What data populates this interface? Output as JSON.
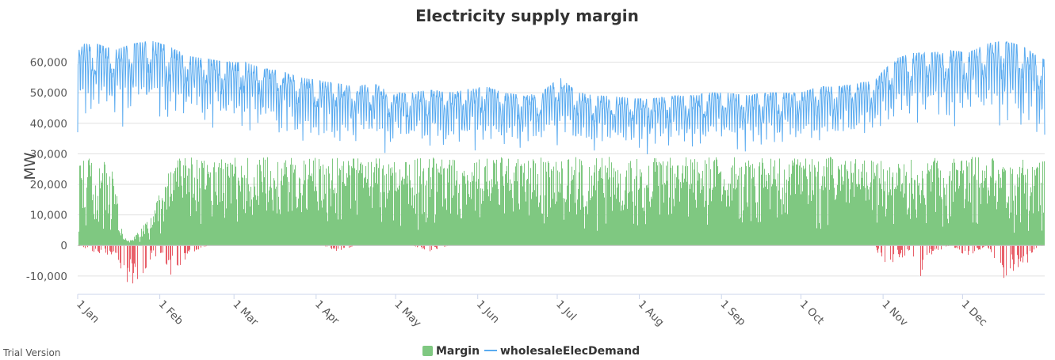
{
  "watermark": "Trial Version",
  "chart_data": {
    "type": "bar+line",
    "title": "Electricity supply margin",
    "xlabel": "",
    "ylabel": "MW",
    "ylim": [
      -16000,
      70000
    ],
    "yticks": [
      -10000,
      0,
      10000,
      20000,
      30000,
      40000,
      50000,
      60000
    ],
    "ytick_labels": [
      "-10,000",
      "0",
      "10,000",
      "20,000",
      "30,000",
      "40,000",
      "50,000",
      "60,000"
    ],
    "xlim": [
      "2021-01-01",
      "2021-12-31"
    ],
    "xticks": [
      "2021-01-01",
      "2021-02-01",
      "2021-03-01",
      "2021-04-01",
      "2021-05-01",
      "2021-06-01",
      "2021-07-01",
      "2021-08-01",
      "2021-09-01",
      "2021-10-01",
      "2021-11-01",
      "2021-12-01"
    ],
    "xtick_labels": [
      "1 Jan",
      "1 Feb",
      "1 Mar",
      "1 Apr",
      "1 May",
      "1 Jun",
      "1 Jul",
      "1 Aug",
      "1 Sep",
      "1 Oct",
      "1 Nov",
      "1 Dec"
    ],
    "grid": true,
    "legend": "bottom-center",
    "series": [
      {
        "name": "Margin",
        "type": "column",
        "color": "#7fc881",
        "negative_color": "#e8606a",
        "x": [
          "2021-01-01",
          "2021-01-08",
          "2021-01-15",
          "2021-01-18",
          "2021-01-21",
          "2021-01-24",
          "2021-01-29",
          "2021-02-05",
          "2021-02-12",
          "2021-02-19",
          "2021-02-26",
          "2021-03-05",
          "2021-03-12",
          "2021-03-19",
          "2021-03-26",
          "2021-04-02",
          "2021-04-09",
          "2021-04-16",
          "2021-04-23",
          "2021-04-30",
          "2021-05-07",
          "2021-05-14",
          "2021-05-21",
          "2021-05-28",
          "2021-06-04",
          "2021-06-11",
          "2021-06-18",
          "2021-06-25",
          "2021-07-02",
          "2021-07-09",
          "2021-07-16",
          "2021-07-23",
          "2021-07-30",
          "2021-08-06",
          "2021-08-13",
          "2021-08-20",
          "2021-08-27",
          "2021-09-03",
          "2021-09-10",
          "2021-09-17",
          "2021-09-24",
          "2021-10-01",
          "2021-10-08",
          "2021-10-15",
          "2021-10-22",
          "2021-10-29",
          "2021-11-01",
          "2021-11-05",
          "2021-11-12",
          "2021-11-15",
          "2021-11-19",
          "2021-11-26",
          "2021-12-03",
          "2021-12-10",
          "2021-12-17",
          "2021-12-20",
          "2021-12-24",
          "2021-12-31"
        ],
        "max": [
          29000,
          29000,
          25000,
          3000,
          2000,
          5000,
          10000,
          28000,
          29000,
          29000,
          29000,
          29000,
          29000,
          29000,
          29000,
          29000,
          29000,
          29000,
          29000,
          29000,
          29000,
          29000,
          29000,
          29000,
          29000,
          29000,
          29000,
          29000,
          29000,
          29000,
          29000,
          29000,
          29000,
          29000,
          29000,
          29000,
          29000,
          29000,
          29000,
          29000,
          29000,
          29000,
          29000,
          29000,
          29000,
          29000,
          28000,
          26000,
          29000,
          25000,
          29000,
          29000,
          29000,
          29000,
          28000,
          25000,
          29000,
          29000
        ],
        "min": [
          0,
          -3000,
          -3000,
          -14000,
          -12000,
          -15000,
          -3000,
          -10000,
          -3000,
          0,
          0,
          0,
          0,
          0,
          0,
          0,
          -2000,
          0,
          0,
          0,
          0,
          -2000,
          0,
          0,
          0,
          0,
          0,
          0,
          0,
          0,
          0,
          0,
          0,
          0,
          0,
          0,
          0,
          0,
          0,
          0,
          0,
          0,
          0,
          0,
          0,
          0,
          -9000,
          -5000,
          -3000,
          -12000,
          -3000,
          0,
          -4000,
          0,
          -12000,
          -9000,
          -8000,
          0
        ]
      },
      {
        "name": "wholesaleElecDemand",
        "type": "line",
        "color": "#5aabf0",
        "x": [
          "2021-01-01",
          "2021-01-08",
          "2021-01-15",
          "2021-01-22",
          "2021-01-29",
          "2021-02-05",
          "2021-02-12",
          "2021-02-19",
          "2021-02-26",
          "2021-03-05",
          "2021-03-12",
          "2021-03-19",
          "2021-03-26",
          "2021-04-02",
          "2021-04-09",
          "2021-04-16",
          "2021-04-23",
          "2021-04-30",
          "2021-05-07",
          "2021-05-14",
          "2021-05-21",
          "2021-05-28",
          "2021-06-04",
          "2021-06-11",
          "2021-06-18",
          "2021-06-25",
          "2021-07-02",
          "2021-07-09",
          "2021-07-16",
          "2021-07-23",
          "2021-07-30",
          "2021-08-06",
          "2021-08-13",
          "2021-08-20",
          "2021-08-27",
          "2021-09-03",
          "2021-09-10",
          "2021-09-17",
          "2021-09-24",
          "2021-10-01",
          "2021-10-08",
          "2021-10-15",
          "2021-10-22",
          "2021-10-29",
          "2021-11-05",
          "2021-11-12",
          "2021-11-19",
          "2021-11-26",
          "2021-12-03",
          "2021-12-10",
          "2021-12-17",
          "2021-12-24",
          "2021-12-31"
        ],
        "max": [
          66000,
          66000,
          64000,
          66000,
          67000,
          65000,
          62000,
          61000,
          60000,
          60000,
          58000,
          57000,
          55000,
          54000,
          53000,
          52000,
          53000,
          50000,
          50000,
          51000,
          50000,
          51000,
          52000,
          50000,
          49000,
          50000,
          55000,
          50000,
          49000,
          49000,
          48000,
          48000,
          49000,
          49000,
          50000,
          50000,
          49000,
          50000,
          50000,
          50000,
          52000,
          52000,
          53000,
          54000,
          61000,
          63000,
          63000,
          64000,
          63000,
          66000,
          67000,
          65000,
          61000
        ],
        "min": [
          36000,
          40000,
          38000,
          38000,
          39000,
          37000,
          38000,
          36000,
          36000,
          35000,
          34000,
          33000,
          32000,
          31000,
          30000,
          30000,
          30000,
          29000,
          29000,
          29000,
          29000,
          30000,
          30000,
          29000,
          29000,
          30000,
          31000,
          29000,
          29000,
          29000,
          29000,
          29000,
          29000,
          29000,
          30000,
          31000,
          29000,
          30000,
          30000,
          31000,
          31000,
          32000,
          33000,
          34000,
          37000,
          37000,
          37000,
          37000,
          38000,
          38000,
          36000,
          34000,
          33000
        ]
      }
    ]
  }
}
